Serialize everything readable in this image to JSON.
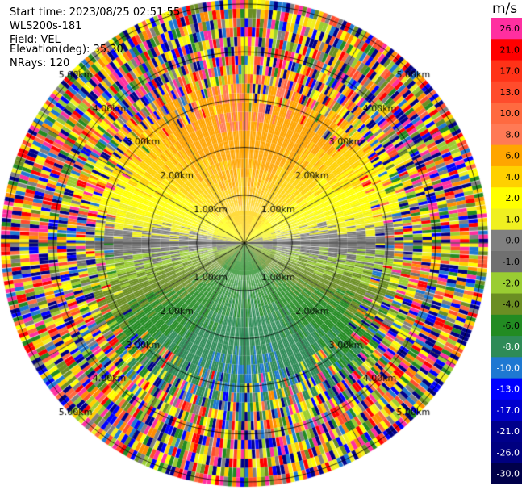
{
  "info": {
    "start_time": "Start time: 2023/08/25 02:51:55",
    "device": "WLS200s-181",
    "field": "Field: VEL",
    "elevation": "Elevation(deg): 35.30",
    "nrays": "NRays: 120"
  },
  "colorbar": {
    "unit": "m/s",
    "ticks": [
      "26.0",
      "21.0",
      "17.0",
      "13.0",
      "10.0",
      "8.0",
      "6.0",
      "4.0",
      "2.0",
      "1.0",
      "0.0",
      "-1.0",
      "-2.0",
      "-4.0",
      "-6.0",
      "-8.0",
      "-10.0",
      "-13.0",
      "-17.0",
      "-21.0",
      "-26.0",
      "-30.0"
    ],
    "colors": [
      "#ff2fa0",
      "#ff0000",
      "#ff3318",
      "#ff4c2c",
      "#ff6a40",
      "#ff7a55",
      "#ffa500",
      "#ffd000",
      "#ffff00",
      "#f0f020",
      "#808080",
      "#707070",
      "#9acd32",
      "#6b8e23",
      "#228b22",
      "#2e8b57",
      "#1e78d2",
      "#0000ff",
      "#0000cd",
      "#00008b",
      "#000080",
      "#00004a"
    ]
  },
  "chart_data": {
    "type": "heatmap",
    "projection": "polar-ppi",
    "field": "VEL",
    "unit": "m/s",
    "n_rays": 120,
    "elevation_deg": 35.3,
    "range_rings_km": [
      1.0,
      2.0,
      3.0,
      4.0,
      5.0
    ],
    "ring_labels": [
      "1.00km",
      "2.00km",
      "3.00km",
      "4.00km",
      "5.00km"
    ],
    "max_range_km": 5.1,
    "radial_gates": 26,
    "velocity_pattern": {
      "north_sector_ms": 8.0,
      "south_sector_ms": -8.0,
      "east_west_ms": 0.0,
      "noise_beyond_km": 3.6
    },
    "clim": [
      -30.0,
      26.0
    ]
  }
}
